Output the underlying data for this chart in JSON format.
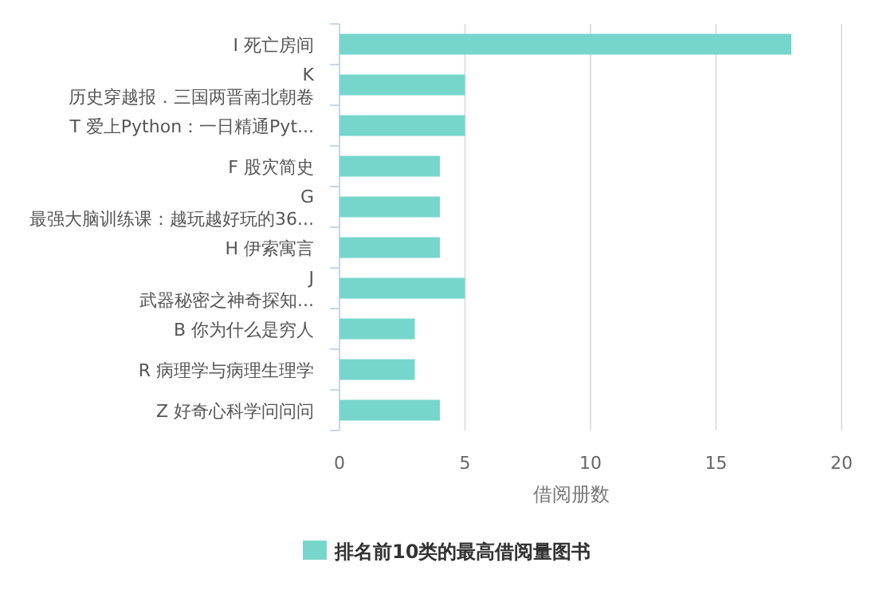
{
  "chart_data": {
    "type": "bar",
    "orientation": "horizontal",
    "xlabel": "借阅册数",
    "categories": [
      "I 死亡房间",
      "K\n历史穿越报．三国两晋南北朝卷",
      "T 爱上Python：一日精通Pyt...",
      "F 股灾简史",
      "G\n最强大脑训练课：越玩越好玩的36...",
      "H 伊索寓言",
      "J\n武器秘密之神奇探知...",
      "B 你为什么是穷人",
      "R 病理学与病理生理学",
      "Z 好奇心科学问问问"
    ],
    "series": [
      {
        "name": "排名前10类的最高借阅量图书",
        "color": "#76d6cc",
        "values": [
          18,
          5,
          5,
          4,
          4,
          4,
          5,
          3,
          3,
          4
        ]
      }
    ],
    "xlim": [
      0,
      20
    ],
    "xticks": [
      0,
      5,
      10,
      15,
      20
    ],
    "grid": "x",
    "legend": "bottom"
  }
}
